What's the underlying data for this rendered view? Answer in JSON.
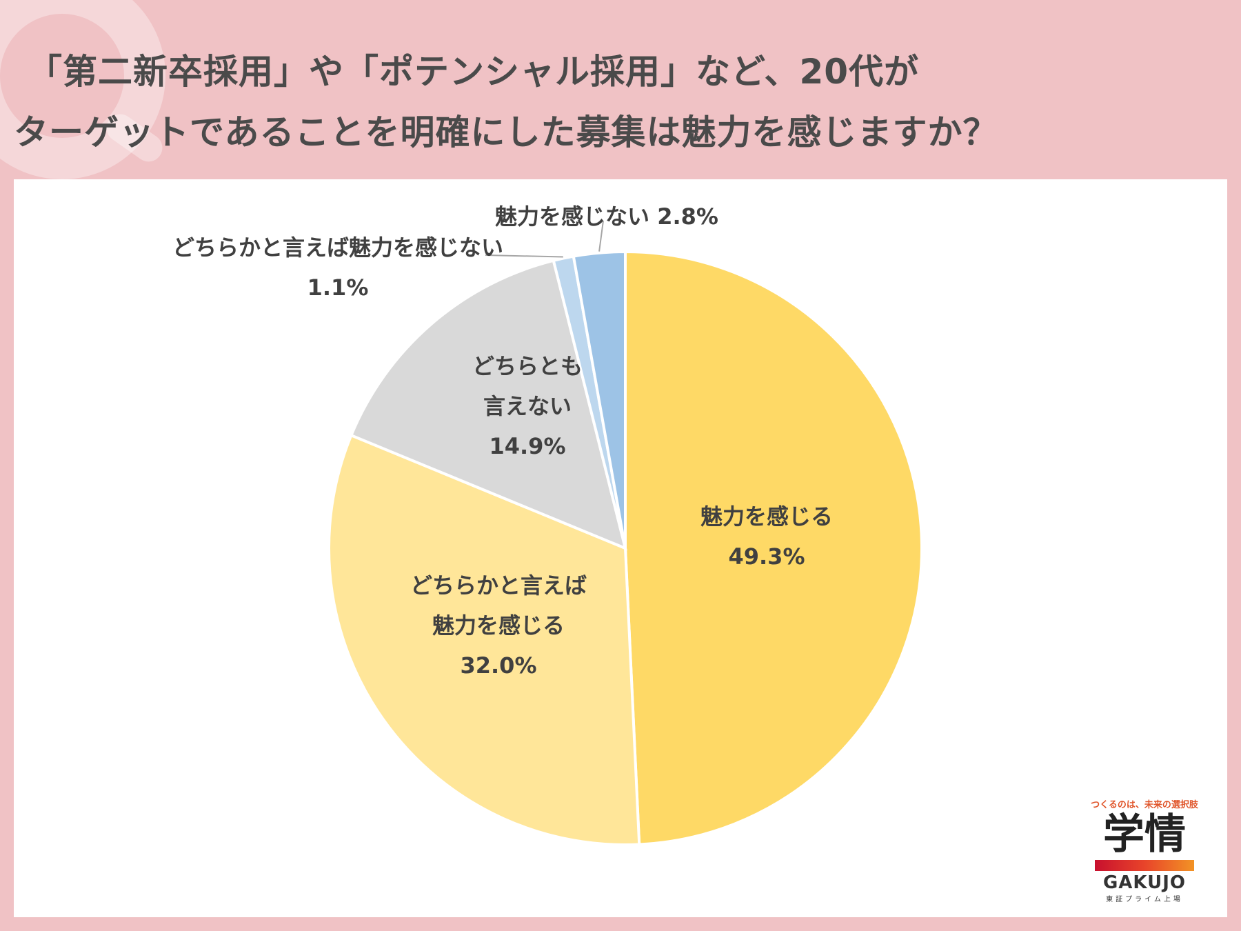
{
  "question": {
    "line1": "「第二新卒採用」や「ポテンシャル採用」など、20代が",
    "line2": "ターゲットであることを明確にした募集は魅力を感じますか？"
  },
  "chart_data": {
    "type": "pie",
    "start": "12 o'clock",
    "direction": "clockwise",
    "slices": [
      {
        "label": "魅力を感じる",
        "value": 49.3,
        "value_label": "49.3%",
        "color": "#fed966"
      },
      {
        "label": "どちらかと言えば魅力を感じる",
        "value": 32.0,
        "value_label": "32.0%",
        "color": "#ffe699"
      },
      {
        "label": "どちらとも言えない",
        "value": 14.9,
        "value_label": "14.9%",
        "color": "#d9d9d9"
      },
      {
        "label": "どちらかと言えば魅力を感じない",
        "value": 1.1,
        "value_label": "1.1%",
        "color": "#bdd7ee"
      },
      {
        "label": "魅力を感じない",
        "value": 2.8,
        "value_label": "2.8%",
        "color": "#9dc3e6"
      }
    ],
    "label_lines": [
      [
        "魅力を感じる",
        "49.3%"
      ],
      [
        "どちらかと言えば",
        "魅力を感じる",
        "32.0%"
      ],
      [
        "どちらとも",
        "言えない",
        "14.9%"
      ],
      [
        "どちらかと言えば魅力を感じない",
        "1.1%"
      ],
      [
        "魅力を感じない 2.8%"
      ]
    ]
  },
  "logo": {
    "tagline": "つくるのは、未来の選択肢",
    "mark": "学情",
    "name": "GAKUJO",
    "sub": "東証プライム上場"
  }
}
